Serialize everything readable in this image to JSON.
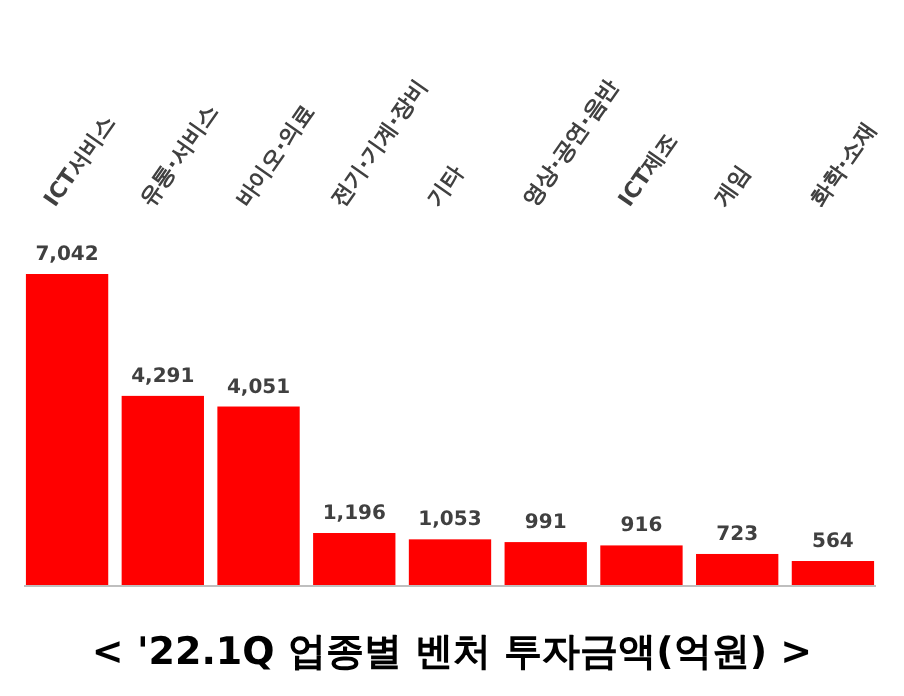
{
  "chart_data": {
    "type": "bar",
    "title": "< '22.1Q 업종별 벤처 투자금액(억원) >",
    "categories": [
      "ICT서비스",
      "유통·서비스",
      "바이오·의료",
      "전기·기계·장비",
      "기타",
      "영상·공연·음반",
      "ICT제조",
      "게임",
      "화학·소재"
    ],
    "values": [
      7042,
      4291,
      4051,
      1196,
      1053,
      991,
      916,
      723,
      564
    ],
    "value_labels": [
      "7,042",
      "4,291",
      "4,051",
      "1,196",
      "1,053",
      "991",
      "916",
      "723",
      "564"
    ],
    "color": "#ff0000",
    "ylim": [
      0,
      7042
    ]
  }
}
